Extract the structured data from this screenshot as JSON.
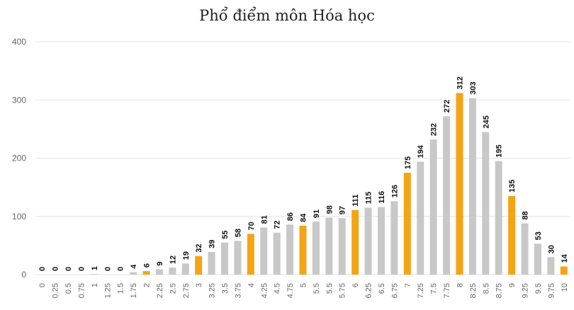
{
  "chart_data": {
    "type": "bar",
    "title": "Phổ điểm môn Hóa học",
    "xlabel": "",
    "ylabel": "",
    "ylim": [
      0,
      400
    ],
    "yticks": [
      0,
      100,
      200,
      300,
      400
    ],
    "grid": true,
    "legend": "none",
    "categories": [
      "0",
      "0.25",
      "0.5",
      "0.75",
      "1",
      "1.25",
      "1.5",
      "1.75",
      "2",
      "2.25",
      "2.5",
      "2.75",
      "3",
      "3.25",
      "3.5",
      "3.75",
      "4",
      "4.25",
      "4.5",
      "4.75",
      "5",
      "5.5",
      "5.5",
      "5.75",
      "6",
      "6.25",
      "6.5",
      "6.75",
      "7",
      "7.25",
      "7.5",
      "7.75",
      "8",
      "8.25",
      "8.5",
      "8.75",
      "9",
      "9.25",
      "9.5",
      "9.75",
      "10"
    ],
    "values": [
      0,
      0,
      0,
      0,
      1,
      0,
      0,
      4,
      6,
      9,
      12,
      19,
      32,
      39,
      55,
      58,
      70,
      81,
      72,
      86,
      84,
      91,
      98,
      97,
      111,
      115,
      116,
      126,
      175,
      194,
      232,
      272,
      312,
      303,
      245,
      195,
      135,
      88,
      53,
      30,
      14
    ],
    "highlight_categories": [
      "2",
      "3",
      "4",
      "5",
      "6",
      "7",
      "8",
      "9",
      "10"
    ],
    "colors": {
      "normal": "#c8c8c8",
      "highlight": "#f5a415",
      "grid": "#e3e3e3"
    }
  }
}
